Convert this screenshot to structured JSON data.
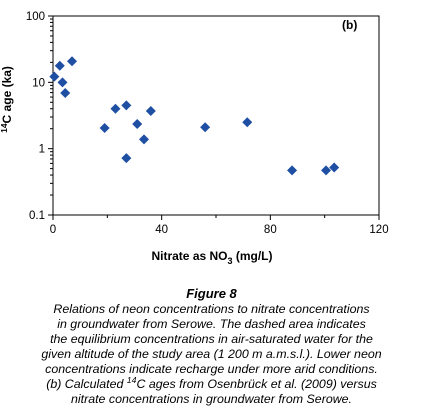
{
  "chart_data": {
    "type": "scatter",
    "panel_label": "(b)",
    "xlabel": "Nitrate as NO",
    "xlabel_sub": "3",
    "xlabel_units": " (mg/L)",
    "ylabel_sup": "14",
    "ylabel": "C age (ka)",
    "xlim": [
      0,
      120
    ],
    "ylim": [
      0.1,
      100
    ],
    "y_scale": "log",
    "x_ticks": [
      0,
      40,
      80,
      120
    ],
    "x_tick_labels": [
      "0",
      "40",
      "80",
      "120"
    ],
    "y_ticks": [
      0.1,
      1,
      10,
      100
    ],
    "y_tick_labels": [
      "0.1",
      "1",
      "10",
      "100"
    ],
    "marker": "diamond",
    "marker_color": "#1f4fa3",
    "grid": false,
    "points": [
      {
        "x": 0.5,
        "y": 12.2
      },
      {
        "x": 2.5,
        "y": 17.8
      },
      {
        "x": 3.5,
        "y": 10.0
      },
      {
        "x": 4.5,
        "y": 6.9
      },
      {
        "x": 7.0,
        "y": 20.8
      },
      {
        "x": 19.0,
        "y": 2.05
      },
      {
        "x": 23.0,
        "y": 4.0
      },
      {
        "x": 27.0,
        "y": 4.5
      },
      {
        "x": 27.0,
        "y": 0.72
      },
      {
        "x": 31.0,
        "y": 2.35
      },
      {
        "x": 33.5,
        "y": 1.38
      },
      {
        "x": 36.0,
        "y": 3.7
      },
      {
        "x": 56.0,
        "y": 2.1
      },
      {
        "x": 71.5,
        "y": 2.5
      },
      {
        "x": 88.0,
        "y": 0.47
      },
      {
        "x": 100.5,
        "y": 0.47
      },
      {
        "x": 103.5,
        "y": 0.52
      }
    ]
  },
  "caption": {
    "title": "Figure 8",
    "lines": [
      "Relations of neon concentrations to nitrate concentrations",
      "in groundwater from Serowe. The dashed area indicates",
      "the equilibrium concentrations in air-saturated water for the",
      "given altitude of the study area (1 200 m a.m.s.l.). Lower neon",
      "concentrations indicate recharge under more arid conditions."
    ],
    "line6_pre": "(b) Calculated ",
    "line6_sup": "14",
    "line6_post": "C ages from Osenbrück et al. (2009) versus",
    "line7": "nitrate concentrations in groundwater from Serowe."
  }
}
